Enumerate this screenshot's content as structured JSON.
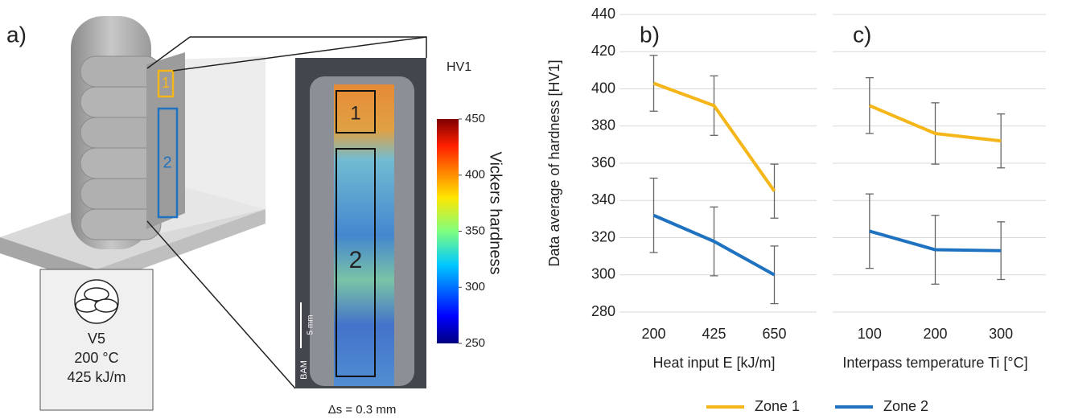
{
  "panel_a": {
    "label": "a)",
    "zone_labels": [
      "1",
      "2"
    ],
    "box_lines": [
      "V5",
      "200 °C",
      "425 kJ/m"
    ],
    "scale_bar": "5 mm",
    "logo": "BAM",
    "step": "Δs = 0.3 mm",
    "colorbar": {
      "title": "HV1",
      "label": "Vickers hardness",
      "lim": [
        250,
        450
      ],
      "ticks": [
        250,
        300,
        350,
        400,
        450
      ]
    }
  },
  "chart_data": [
    {
      "type": "line",
      "label": "b)",
      "ylabel": "Data average of hardness [HV1]",
      "xlabel": "Heat input E [kJ/m]",
      "categories": [
        "200",
        "425",
        "650"
      ],
      "ylim": [
        280,
        440
      ],
      "yticks": [
        280,
        300,
        320,
        340,
        360,
        380,
        400,
        420,
        440
      ],
      "ytick_labels": true,
      "grid": true,
      "legend": "bottom",
      "series": [
        {
          "name": "Zone 1",
          "color": "#f5b61a",
          "values": [
            403,
            391,
            345
          ],
          "errors": [
            15,
            16,
            14.5
          ]
        },
        {
          "name": "Zone 2",
          "color": "#1f72c0",
          "values": [
            332,
            318,
            300
          ],
          "errors": [
            20,
            18.5,
            15.5
          ]
        }
      ]
    },
    {
      "type": "line",
      "label": "c)",
      "xlabel": "Interpass temperature Ti [°C]",
      "categories": [
        "100",
        "200",
        "300"
      ],
      "ylim": [
        280,
        440
      ],
      "yticks": [
        280,
        300,
        320,
        340,
        360,
        380,
        400,
        420,
        440
      ],
      "ytick_labels": false,
      "grid": true,
      "series": [
        {
          "color": "#f5b61a",
          "values": [
            391,
            376,
            372
          ],
          "errors": [
            15,
            16.5,
            14.5
          ]
        },
        {
          "color": "#1f72c0",
          "values": [
            323.5,
            313.5,
            313
          ],
          "errors": [
            20,
            18.5,
            15.5
          ]
        }
      ]
    }
  ]
}
